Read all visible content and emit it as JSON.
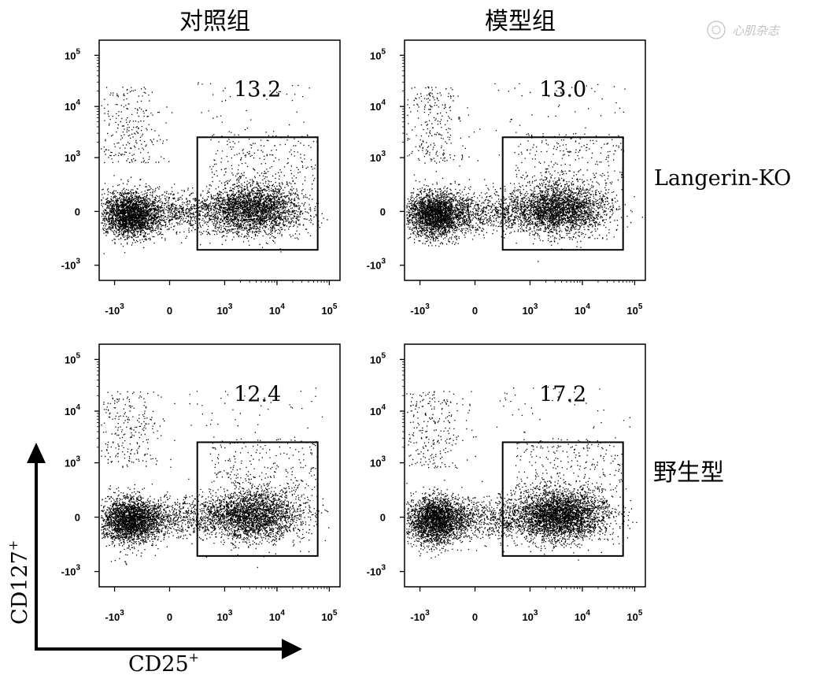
{
  "figure": {
    "col_headers": [
      "对照组",
      "模型组"
    ],
    "row_labels": [
      "Langerin-KO",
      "野生型"
    ],
    "axis_x_label": "CD25",
    "axis_x_sup": "+",
    "axis_y_label": "CD127",
    "axis_y_sup": "+",
    "watermark_text": "心肌杂志"
  },
  "chart_data": [
    {
      "type": "scatter",
      "title": "对照组",
      "row": "Langerin-KO",
      "x_scale": "biexponential",
      "y_scale": "biexponential",
      "x_ticks": [
        {
          "base": "-10",
          "exp": "3",
          "v": -1000
        },
        {
          "base": "0",
          "exp": "",
          "v": 0
        },
        {
          "base": "10",
          "exp": "3",
          "v": 1000
        },
        {
          "base": "10",
          "exp": "4",
          "v": 10000
        },
        {
          "base": "10",
          "exp": "5",
          "v": 100000
        }
      ],
      "y_ticks": [
        {
          "base": "10",
          "exp": "5",
          "v": 100000
        },
        {
          "base": "10",
          "exp": "4",
          "v": 10000
        },
        {
          "base": "10",
          "exp": "3",
          "v": 1000
        },
        {
          "base": "0",
          "exp": "",
          "v": 0
        },
        {
          "base": "-10",
          "exp": "3",
          "v": -1000
        }
      ],
      "gate": {
        "x_range": [
          300,
          60000
        ],
        "y_range": [
          -500,
          2500
        ],
        "percent": "13.2"
      }
    },
    {
      "type": "scatter",
      "title": "模型组",
      "row": "Langerin-KO",
      "x_scale": "biexponential",
      "y_scale": "biexponential",
      "x_ticks": [
        {
          "base": "-10",
          "exp": "3",
          "v": -1000
        },
        {
          "base": "0",
          "exp": "",
          "v": 0
        },
        {
          "base": "10",
          "exp": "3",
          "v": 1000
        },
        {
          "base": "10",
          "exp": "4",
          "v": 10000
        },
        {
          "base": "10",
          "exp": "5",
          "v": 100000
        }
      ],
      "y_ticks": [
        {
          "base": "10",
          "exp": "5",
          "v": 100000
        },
        {
          "base": "10",
          "exp": "4",
          "v": 10000
        },
        {
          "base": "10",
          "exp": "3",
          "v": 1000
        },
        {
          "base": "0",
          "exp": "",
          "v": 0
        },
        {
          "base": "-10",
          "exp": "3",
          "v": -1000
        }
      ],
      "gate": {
        "x_range": [
          300,
          60000
        ],
        "y_range": [
          -500,
          2500
        ],
        "percent": "13.0"
      }
    },
    {
      "type": "scatter",
      "title": "对照组",
      "row": "野生型",
      "x_scale": "biexponential",
      "y_scale": "biexponential",
      "x_ticks": [
        {
          "base": "-10",
          "exp": "3",
          "v": -1000
        },
        {
          "base": "0",
          "exp": "",
          "v": 0
        },
        {
          "base": "10",
          "exp": "3",
          "v": 1000
        },
        {
          "base": "10",
          "exp": "4",
          "v": 10000
        },
        {
          "base": "10",
          "exp": "5",
          "v": 100000
        }
      ],
      "y_ticks": [
        {
          "base": "10",
          "exp": "5",
          "v": 100000
        },
        {
          "base": "10",
          "exp": "4",
          "v": 10000
        },
        {
          "base": "10",
          "exp": "3",
          "v": 1000
        },
        {
          "base": "0",
          "exp": "",
          "v": 0
        },
        {
          "base": "-10",
          "exp": "3",
          "v": -1000
        }
      ],
      "gate": {
        "x_range": [
          300,
          60000
        ],
        "y_range": [
          -500,
          2500
        ],
        "percent": "12.4"
      }
    },
    {
      "type": "scatter",
      "title": "模型组",
      "row": "野生型",
      "x_scale": "biexponential",
      "y_scale": "biexponential",
      "x_ticks": [
        {
          "base": "-10",
          "exp": "3",
          "v": -1000
        },
        {
          "base": "0",
          "exp": "",
          "v": 0
        },
        {
          "base": "10",
          "exp": "3",
          "v": 1000
        },
        {
          "base": "10",
          "exp": "4",
          "v": 10000
        },
        {
          "base": "10",
          "exp": "5",
          "v": 100000
        }
      ],
      "y_ticks": [
        {
          "base": "10",
          "exp": "5",
          "v": 100000
        },
        {
          "base": "10",
          "exp": "4",
          "v": 10000
        },
        {
          "base": "10",
          "exp": "3",
          "v": 1000
        },
        {
          "base": "0",
          "exp": "",
          "v": 0
        },
        {
          "base": "-10",
          "exp": "3",
          "v": -1000
        }
      ],
      "gate": {
        "x_range": [
          300,
          60000
        ],
        "y_range": [
          -500,
          2500
        ],
        "percent": "17.2"
      }
    }
  ]
}
